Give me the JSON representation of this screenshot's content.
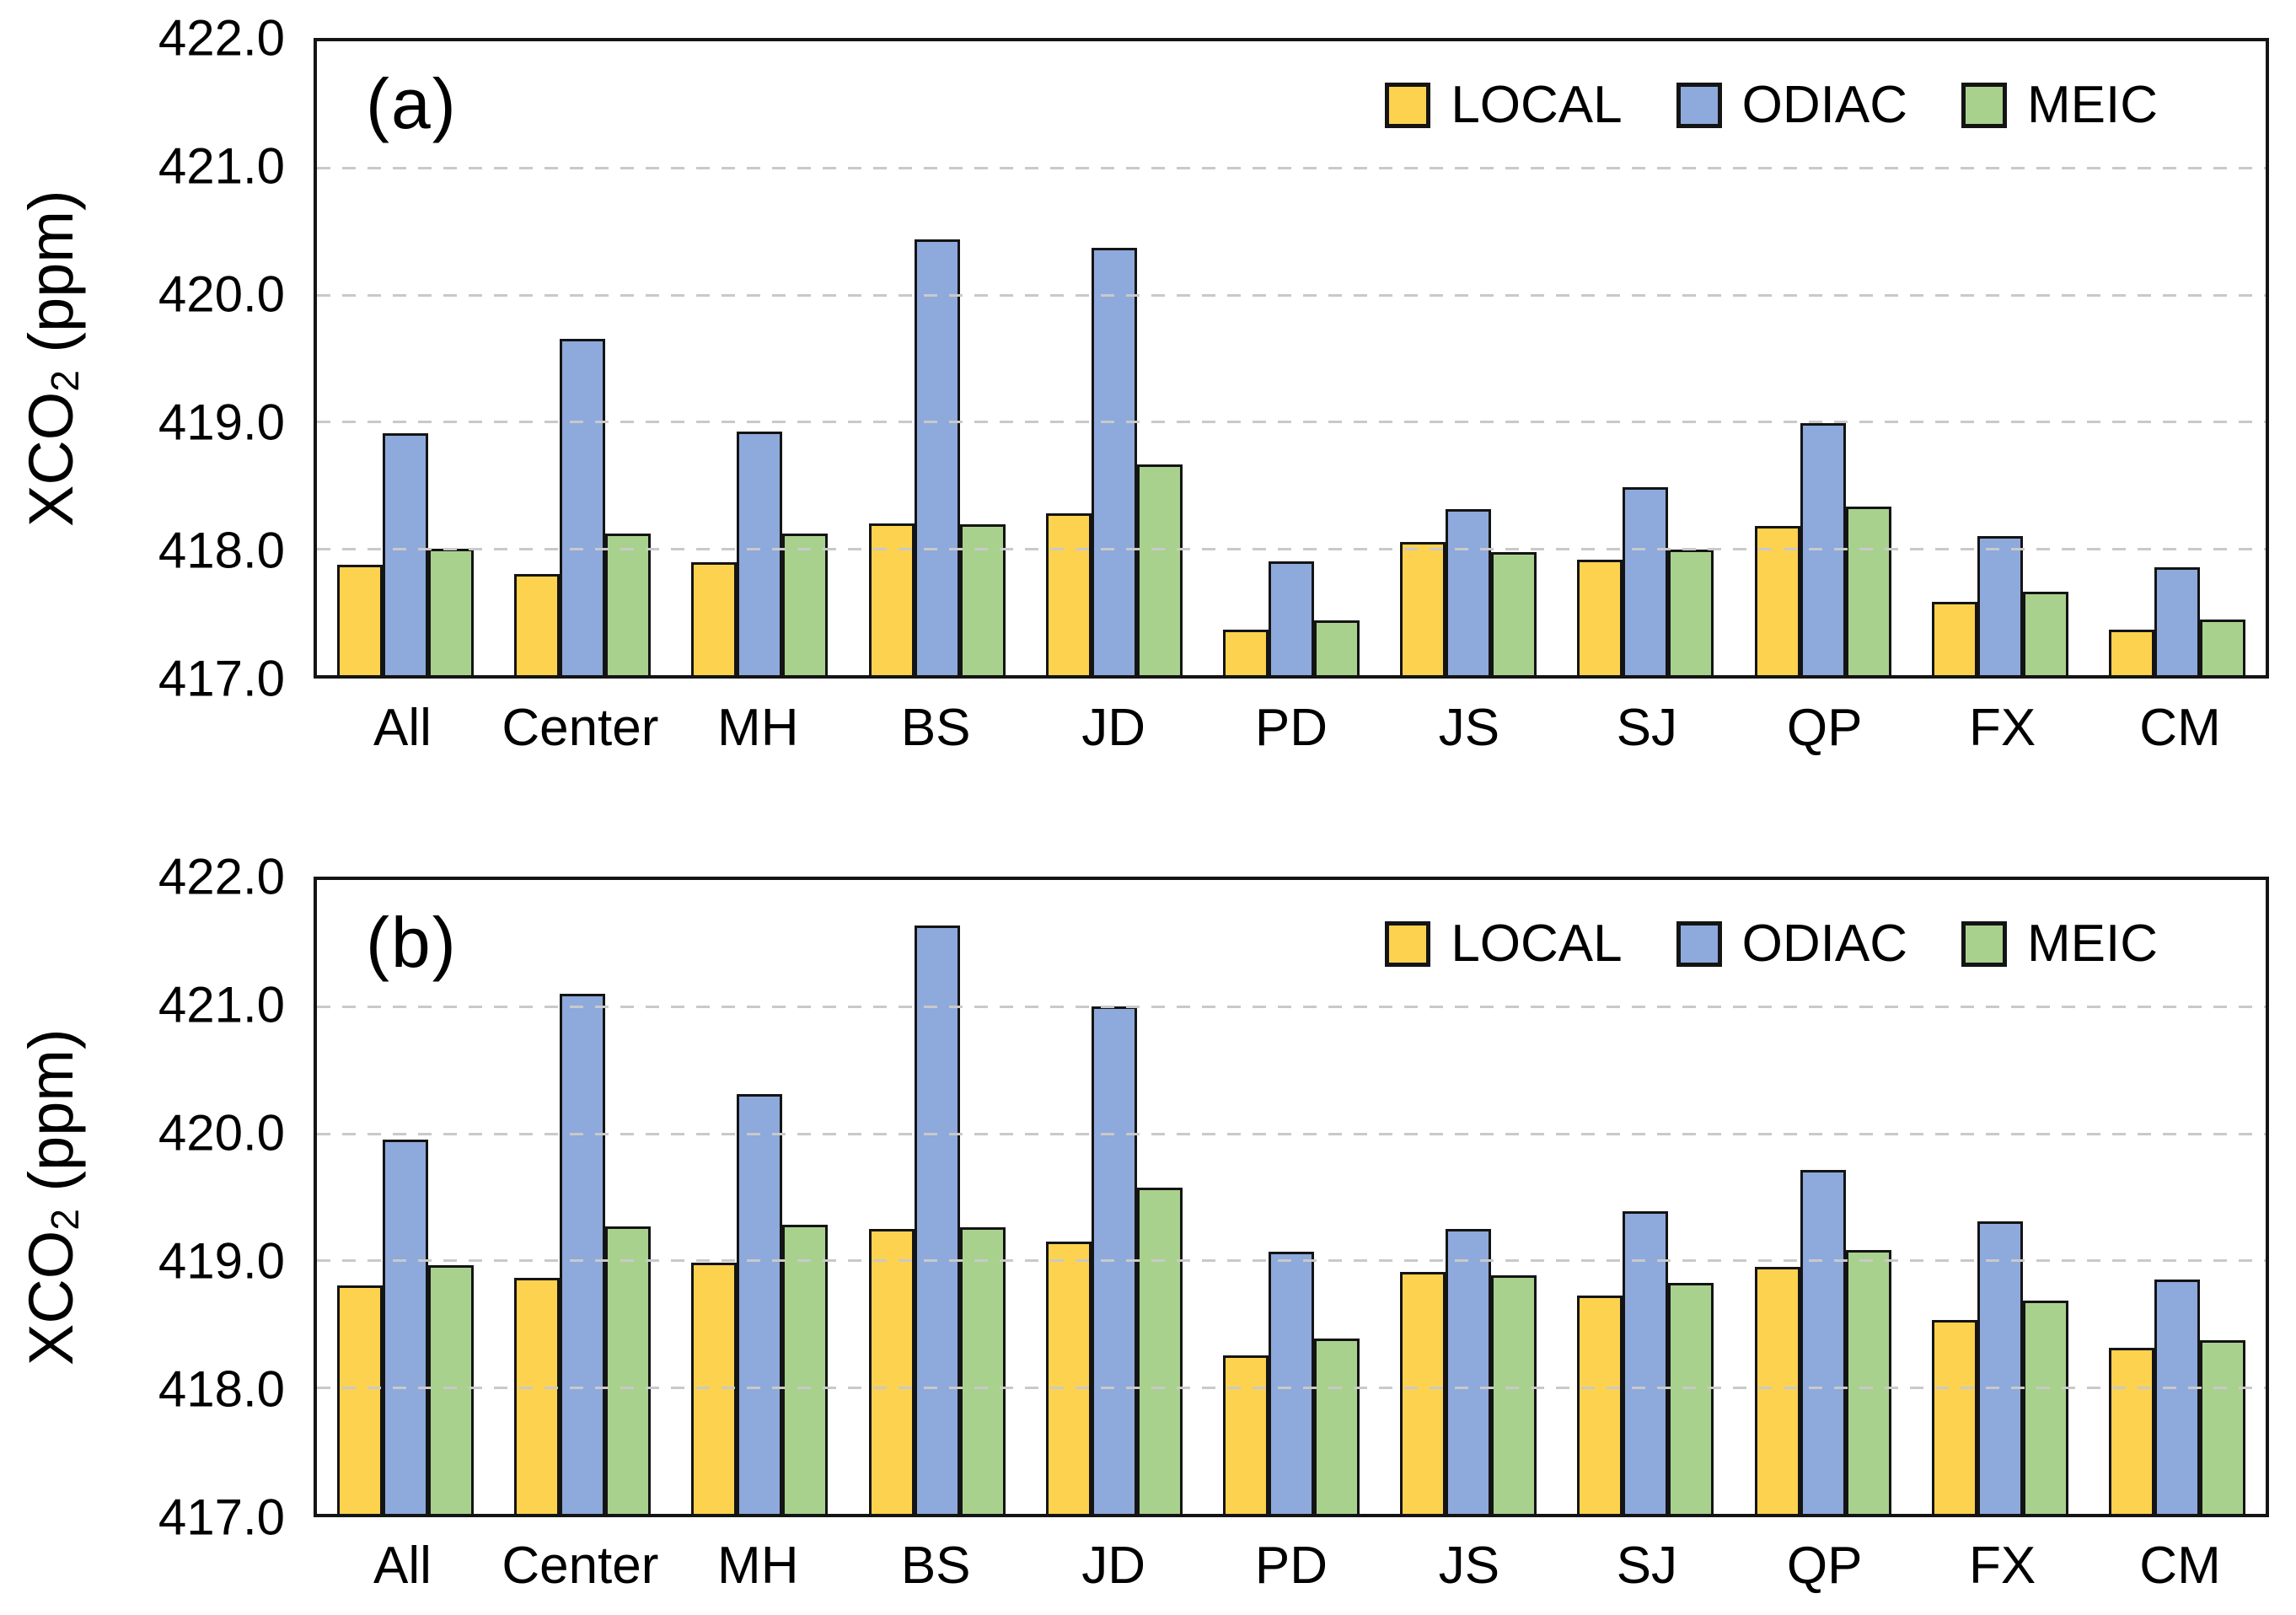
{
  "chart_data": [
    {
      "type": "bar",
      "panel_label": "(a)",
      "ylabel": "XCO2 (ppm)",
      "ylabel_parts": {
        "main": "XCO",
        "sub": "2",
        "unit": " (ppm)"
      },
      "ylim": [
        417.0,
        422.0
      ],
      "yticks": [
        "422.0",
        "421.0",
        "420.0",
        "419.0",
        "418.0",
        "417.0"
      ],
      "grid": "horizontal-dashed",
      "legend_position": "top-right-inside",
      "categories": [
        "All",
        "Center",
        "MH",
        "BS",
        "JD",
        "PD",
        "JS",
        "SJ",
        "QP",
        "FX",
        "CM"
      ],
      "series": [
        {
          "name": "LOCAL",
          "color": "#FDD24E",
          "values": [
            417.87,
            417.8,
            417.89,
            418.2,
            418.28,
            417.36,
            418.05,
            417.91,
            418.18,
            417.58,
            417.36
          ]
        },
        {
          "name": "ODIAC",
          "color": "#8EA9DB",
          "values": [
            418.91,
            419.65,
            418.92,
            420.44,
            420.37,
            417.9,
            418.31,
            418.48,
            418.99,
            418.1,
            417.85
          ]
        },
        {
          "name": "MEIC",
          "color": "#A9D18E",
          "values": [
            418.0,
            418.12,
            418.12,
            418.19,
            418.66,
            417.43,
            417.97,
            417.99,
            418.33,
            417.66,
            417.44
          ]
        }
      ]
    },
    {
      "type": "bar",
      "panel_label": "(b)",
      "ylabel": "XCO2 (ppm)",
      "ylabel_parts": {
        "main": "XCO",
        "sub": "2",
        "unit": " (ppm)"
      },
      "ylim": [
        417.0,
        422.0
      ],
      "yticks": [
        "422.0",
        "421.0",
        "420.0",
        "419.0",
        "418.0",
        "417.0"
      ],
      "grid": "horizontal-dashed",
      "legend_position": "top-right-inside",
      "categories": [
        "All",
        "Center",
        "MH",
        "BS",
        "JD",
        "PD",
        "JS",
        "SJ",
        "QP",
        "FX",
        "CM"
      ],
      "series": [
        {
          "name": "LOCAL",
          "color": "#FDD24E",
          "values": [
            418.8,
            418.86,
            418.98,
            419.25,
            419.15,
            418.25,
            418.91,
            418.72,
            418.95,
            418.53,
            418.31
          ]
        },
        {
          "name": "ODIAC",
          "color": "#8EA9DB",
          "values": [
            419.95,
            421.1,
            420.31,
            421.64,
            421.0,
            419.07,
            419.25,
            419.39,
            419.71,
            419.31,
            418.85
          ]
        },
        {
          "name": "MEIC",
          "color": "#A9D18E",
          "values": [
            418.96,
            419.27,
            419.28,
            419.26,
            419.57,
            418.38,
            418.88,
            418.82,
            419.08,
            418.68,
            418.37
          ]
        }
      ]
    }
  ]
}
